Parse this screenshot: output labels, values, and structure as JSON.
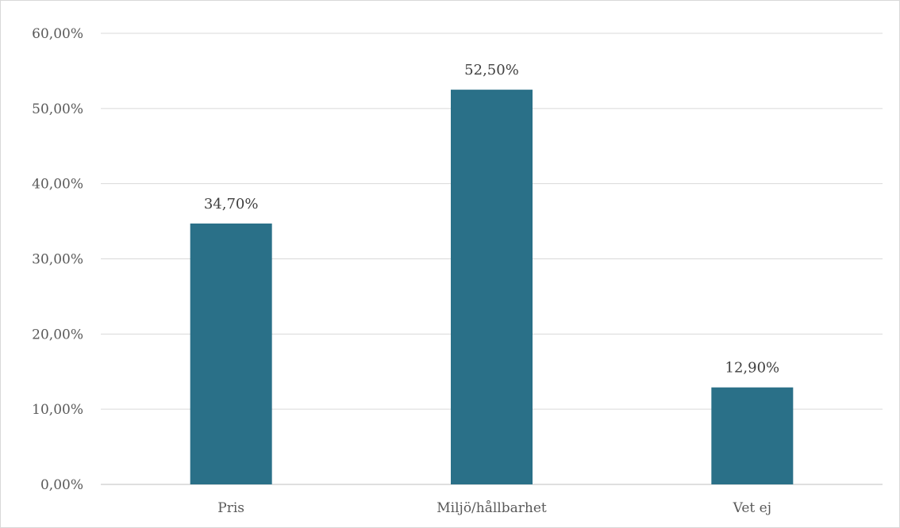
{
  "chart_data": {
    "type": "bar",
    "title": "",
    "xlabel": "",
    "ylabel": "",
    "categories": [
      "Pris",
      "Miljö/hållbarhet",
      "Vet ej"
    ],
    "values": [
      34.7,
      52.5,
      12.9
    ],
    "data_labels": [
      "34,70%",
      "52,50%",
      "12,90%"
    ],
    "ylim": [
      0,
      60
    ],
    "yticks": [
      0,
      10,
      20,
      30,
      40,
      50,
      60
    ],
    "ytick_labels": [
      "0,00%",
      "10,00%",
      "20,00%",
      "30,00%",
      "40,00%",
      "50,00%",
      "60,00%"
    ],
    "grid": true,
    "legend": "none",
    "colors": {
      "bar": "#2a7088",
      "grid": "#d9d9d9",
      "text": "#595959"
    }
  }
}
